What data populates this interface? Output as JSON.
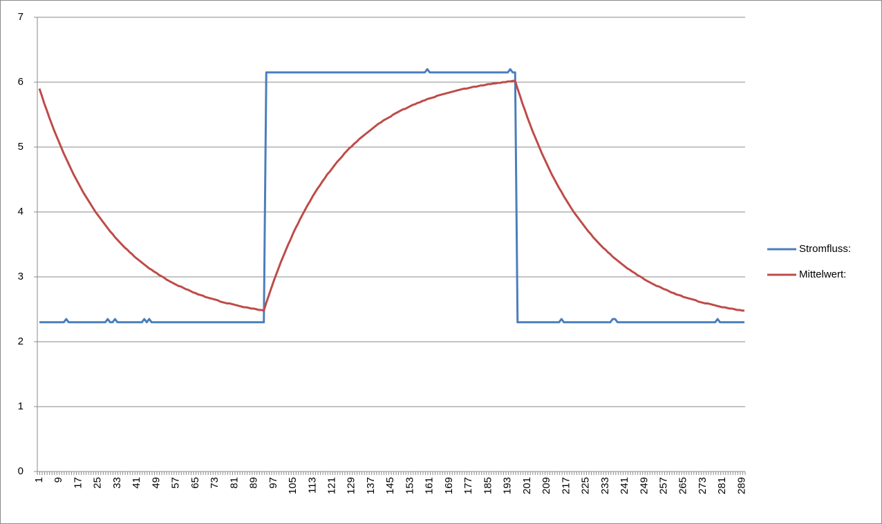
{
  "chart_data": {
    "type": "line",
    "categories": [
      "1",
      null,
      null,
      null,
      null,
      null,
      null,
      null,
      "9",
      null,
      null,
      null,
      null,
      null,
      null,
      null,
      "17",
      null,
      null,
      null,
      null,
      null,
      null,
      null,
      "25",
      null,
      null,
      null,
      null,
      null,
      null,
      null,
      "33",
      null,
      null,
      null,
      null,
      null,
      null,
      null,
      "41",
      null,
      null,
      null,
      null,
      null,
      null,
      null,
      "49",
      null,
      null,
      null,
      null,
      null,
      null,
      null,
      "57",
      null,
      null,
      null,
      null,
      null,
      null,
      null,
      "65",
      null,
      null,
      null,
      null,
      null,
      null,
      null,
      "73",
      null,
      null,
      null,
      null,
      null,
      null,
      null,
      "81",
      null,
      null,
      null,
      null,
      null,
      null,
      null,
      "89",
      null,
      null,
      null,
      null,
      null,
      null,
      null,
      "97",
      null,
      null,
      null,
      null,
      null,
      null,
      null,
      "105",
      null,
      null,
      null,
      null,
      null,
      null,
      null,
      "113",
      null,
      null,
      null,
      null,
      null,
      null,
      null,
      "121",
      null,
      null,
      null,
      null,
      null,
      null,
      null,
      "129",
      null,
      null,
      null,
      null,
      null,
      null,
      null,
      "137",
      null,
      null,
      null,
      null,
      null,
      null,
      null,
      "145",
      null,
      null,
      null,
      null,
      null,
      null,
      null,
      "153",
      null,
      null,
      null,
      null,
      null,
      null,
      null,
      "161",
      null,
      null,
      null,
      null,
      null,
      null,
      null,
      "169",
      null,
      null,
      null,
      null,
      null,
      null,
      null,
      "177",
      null,
      null,
      null,
      null,
      null,
      null,
      null,
      "185",
      null,
      null,
      null,
      null,
      null,
      null,
      null,
      "193",
      null,
      null,
      null,
      null,
      null,
      null,
      null,
      "201",
      null,
      null,
      null,
      null,
      null,
      null,
      null,
      "209",
      null,
      null,
      null,
      null,
      null,
      null,
      null,
      "217",
      null,
      null,
      null,
      null,
      null,
      null,
      null,
      "225",
      null,
      null,
      null,
      null,
      null,
      null,
      null,
      "233",
      null,
      null,
      null,
      null,
      null,
      null,
      null,
      "241",
      null,
      null,
      null,
      null,
      null,
      null,
      null,
      "249",
      null,
      null,
      null,
      null,
      null,
      null,
      null,
      "257",
      null,
      null,
      null,
      null,
      null,
      null,
      null,
      "265",
      null,
      null,
      null,
      null,
      null,
      null,
      null,
      "273",
      null,
      null,
      null,
      null,
      null,
      null,
      null,
      "281",
      null,
      null,
      null,
      null,
      null,
      null,
      null,
      "289",
      null
    ],
    "series": [
      {
        "name": "Stromfluss:",
        "color": "#4a7ebb",
        "values": [
          2.3,
          2.3,
          2.3,
          2.3,
          2.3,
          2.3,
          2.3,
          2.3,
          2.3,
          2.3,
          2.3,
          2.35,
          2.3,
          2.3,
          2.3,
          2.3,
          2.3,
          2.3,
          2.3,
          2.3,
          2.3,
          2.3,
          2.3,
          2.3,
          2.3,
          2.3,
          2.3,
          2.3,
          2.35,
          2.3,
          2.3,
          2.35,
          2.3,
          2.3,
          2.3,
          2.3,
          2.3,
          2.3,
          2.3,
          2.3,
          2.3,
          2.3,
          2.3,
          2.35,
          2.3,
          2.35,
          2.3,
          2.3,
          2.3,
          2.3,
          2.3,
          2.3,
          2.3,
          2.3,
          2.3,
          2.3,
          2.3,
          2.3,
          2.3,
          2.3,
          2.3,
          2.3,
          2.3,
          2.3,
          2.3,
          2.3,
          2.3,
          2.3,
          2.3,
          2.3,
          2.3,
          2.3,
          2.3,
          2.3,
          2.3,
          2.3,
          2.3,
          2.3,
          2.3,
          2.3,
          2.3,
          2.3,
          2.3,
          2.3,
          2.3,
          2.3,
          2.3,
          2.3,
          2.3,
          2.3,
          2.3,
          2.3,
          2.3,
          6.15,
          6.15,
          6.15,
          6.15,
          6.15,
          6.15,
          6.15,
          6.15,
          6.15,
          6.15,
          6.15,
          6.15,
          6.15,
          6.15,
          6.15,
          6.15,
          6.15,
          6.15,
          6.15,
          6.15,
          6.15,
          6.15,
          6.15,
          6.15,
          6.15,
          6.15,
          6.15,
          6.15,
          6.15,
          6.15,
          6.15,
          6.15,
          6.15,
          6.15,
          6.15,
          6.15,
          6.15,
          6.15,
          6.15,
          6.15,
          6.15,
          6.15,
          6.15,
          6.15,
          6.15,
          6.15,
          6.15,
          6.15,
          6.15,
          6.15,
          6.15,
          6.15,
          6.15,
          6.15,
          6.15,
          6.15,
          6.15,
          6.15,
          6.15,
          6.15,
          6.15,
          6.15,
          6.15,
          6.15,
          6.15,
          6.15,
          6.2,
          6.15,
          6.15,
          6.15,
          6.15,
          6.15,
          6.15,
          6.15,
          6.15,
          6.15,
          6.15,
          6.15,
          6.15,
          6.15,
          6.15,
          6.15,
          6.15,
          6.15,
          6.15,
          6.15,
          6.15,
          6.15,
          6.15,
          6.15,
          6.15,
          6.15,
          6.15,
          6.15,
          6.15,
          6.15,
          6.15,
          6.15,
          6.15,
          6.15,
          6.2,
          6.15,
          6.15,
          2.3,
          2.3,
          2.3,
          2.3,
          2.3,
          2.3,
          2.3,
          2.3,
          2.3,
          2.3,
          2.3,
          2.3,
          2.3,
          2.3,
          2.3,
          2.3,
          2.3,
          2.3,
          2.35,
          2.3,
          2.3,
          2.3,
          2.3,
          2.3,
          2.3,
          2.3,
          2.3,
          2.3,
          2.3,
          2.3,
          2.3,
          2.3,
          2.3,
          2.3,
          2.3,
          2.3,
          2.3,
          2.3,
          2.3,
          2.35,
          2.35,
          2.3,
          2.3,
          2.3,
          2.3,
          2.3,
          2.3,
          2.3,
          2.3,
          2.3,
          2.3,
          2.3,
          2.3,
          2.3,
          2.3,
          2.3,
          2.3,
          2.3,
          2.3,
          2.3,
          2.3,
          2.3,
          2.3,
          2.3,
          2.3,
          2.3,
          2.3,
          2.3,
          2.3,
          2.3,
          2.3,
          2.3,
          2.3,
          2.3,
          2.3,
          2.3,
          2.3,
          2.3,
          2.3,
          2.3,
          2.3,
          2.3,
          2.35,
          2.3,
          2.3,
          2.3,
          2.3,
          2.3,
          2.3,
          2.3,
          2.3,
          2.3,
          2.3,
          2.3
        ]
      },
      {
        "name": "Mittelwert:",
        "color": "#be4b48",
        "values": [
          5.9,
          5.79,
          5.67,
          5.57,
          5.46,
          5.36,
          5.26,
          5.17,
          5.08,
          4.99,
          4.9,
          4.82,
          4.74,
          4.66,
          4.58,
          4.51,
          4.44,
          4.37,
          4.3,
          4.24,
          4.18,
          4.12,
          4.06,
          4.0,
          3.95,
          3.9,
          3.85,
          3.8,
          3.75,
          3.7,
          3.66,
          3.61,
          3.57,
          3.53,
          3.49,
          3.45,
          3.42,
          3.38,
          3.35,
          3.31,
          3.28,
          3.25,
          3.22,
          3.19,
          3.16,
          3.13,
          3.11,
          3.08,
          3.06,
          3.03,
          3.01,
          2.99,
          2.96,
          2.94,
          2.92,
          2.9,
          2.88,
          2.86,
          2.85,
          2.83,
          2.81,
          2.8,
          2.78,
          2.76,
          2.75,
          2.73,
          2.72,
          2.71,
          2.69,
          2.68,
          2.67,
          2.66,
          2.65,
          2.64,
          2.62,
          2.61,
          2.6,
          2.59,
          2.59,
          2.58,
          2.57,
          2.56,
          2.55,
          2.54,
          2.53,
          2.53,
          2.52,
          2.51,
          2.51,
          2.5,
          2.49,
          2.49,
          2.48,
          2.6,
          2.71,
          2.82,
          2.93,
          3.03,
          3.13,
          3.23,
          3.32,
          3.41,
          3.5,
          3.58,
          3.67,
          3.75,
          3.82,
          3.9,
          3.97,
          4.04,
          4.11,
          4.17,
          4.24,
          4.3,
          4.36,
          4.41,
          4.47,
          4.52,
          4.58,
          4.62,
          4.67,
          4.72,
          4.77,
          4.81,
          4.85,
          4.9,
          4.94,
          4.98,
          5.01,
          5.05,
          5.08,
          5.12,
          5.15,
          5.18,
          5.21,
          5.24,
          5.27,
          5.3,
          5.33,
          5.36,
          5.38,
          5.41,
          5.43,
          5.45,
          5.47,
          5.5,
          5.52,
          5.54,
          5.56,
          5.58,
          5.59,
          5.61,
          5.63,
          5.65,
          5.66,
          5.68,
          5.69,
          5.71,
          5.72,
          5.74,
          5.75,
          5.76,
          5.77,
          5.79,
          5.8,
          5.81,
          5.82,
          5.83,
          5.84,
          5.85,
          5.86,
          5.87,
          5.88,
          5.89,
          5.9,
          5.9,
          5.91,
          5.92,
          5.93,
          5.93,
          5.94,
          5.95,
          5.95,
          5.96,
          5.97,
          5.97,
          5.98,
          5.98,
          5.99,
          5.99,
          6.0,
          6.0,
          6.01,
          6.01,
          6.02,
          6.02,
          5.9,
          5.79,
          5.67,
          5.57,
          5.46,
          5.36,
          5.26,
          5.17,
          5.08,
          4.99,
          4.9,
          4.82,
          4.74,
          4.66,
          4.58,
          4.51,
          4.44,
          4.37,
          4.31,
          4.24,
          4.18,
          4.12,
          4.06,
          4.0,
          3.95,
          3.9,
          3.85,
          3.8,
          3.75,
          3.7,
          3.66,
          3.61,
          3.57,
          3.53,
          3.49,
          3.45,
          3.42,
          3.38,
          3.35,
          3.31,
          3.28,
          3.25,
          3.22,
          3.19,
          3.16,
          3.13,
          3.11,
          3.08,
          3.06,
          3.03,
          3.01,
          2.99,
          2.96,
          2.94,
          2.92,
          2.9,
          2.88,
          2.86,
          2.85,
          2.83,
          2.81,
          2.8,
          2.78,
          2.76,
          2.75,
          2.73,
          2.72,
          2.71,
          2.69,
          2.68,
          2.67,
          2.66,
          2.65,
          2.64,
          2.62,
          2.61,
          2.6,
          2.59,
          2.59,
          2.58,
          2.57,
          2.56,
          2.55,
          2.54,
          2.53,
          2.53,
          2.52,
          2.51,
          2.51,
          2.5,
          2.49,
          2.49,
          2.48,
          2.48
        ]
      }
    ],
    "ylim": [
      0,
      7
    ],
    "yticks": [
      0,
      1,
      2,
      3,
      4,
      5,
      6,
      7
    ],
    "grid": true,
    "legend": "right"
  }
}
